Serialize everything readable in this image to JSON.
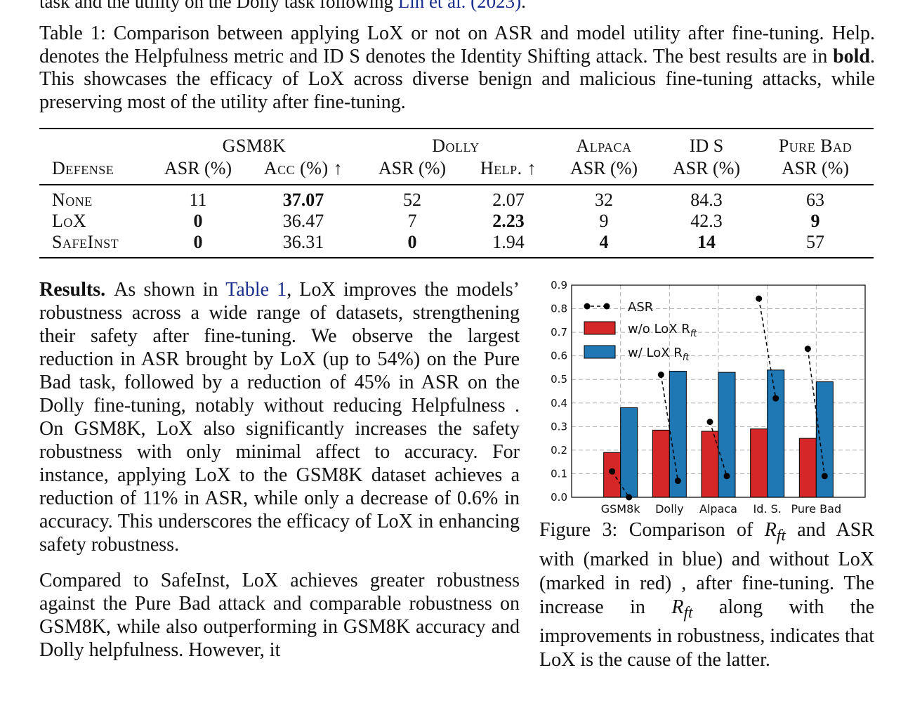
{
  "top_line": {
    "text": "task and the utility on the Dolly task following",
    "cite": "Lin et al. (2023)",
    "tail": "."
  },
  "table_caption": {
    "prefix": "Table 1:",
    "text_1": " Comparison between applying LoX or not on ASR and model utility after fine-tuning. Help. denotes the Helpfulness metric and ID S denotes the Identity Shifting attack. The best results are in ",
    "bold_word": "bold",
    "text_2": ". This showcases the efficacy of LoX across diverse benign and malicious fine-tuning attacks, while preserving most of the utility after fine-tuning."
  },
  "table": {
    "groups": [
      "GSM8K",
      "Dolly",
      "Alpaca",
      "ID S",
      "Pure Bad"
    ],
    "columns": [
      "Defense",
      "ASR (%)",
      "Acc (%) ↑",
      "ASR (%)",
      "Help. ↑",
      "ASR (%)",
      "ASR (%)",
      "ASR (%)"
    ],
    "rows": [
      {
        "name": "None",
        "cells": [
          "11",
          "37.07",
          "52",
          "2.07",
          "32",
          "84.3",
          "63"
        ],
        "bold": [
          false,
          true,
          false,
          false,
          false,
          false,
          false
        ]
      },
      {
        "name": "LoX",
        "cells": [
          "0",
          "36.47",
          "7",
          "2.23",
          "9",
          "42.3",
          "9"
        ],
        "bold": [
          true,
          false,
          false,
          true,
          false,
          false,
          true
        ]
      },
      {
        "name": "SafeInst",
        "cells": [
          "0",
          "36.31",
          "0",
          "1.94",
          "4",
          "14",
          "57"
        ],
        "bold": [
          true,
          false,
          true,
          false,
          true,
          true,
          false
        ]
      }
    ]
  },
  "body": {
    "p1_lead": "Results.",
    "p1_a": "As shown in ",
    "p1_ref": "Table 1",
    "p1_b": ", LoX improves the models’ robustness across a wide range of datasets, strengthening their safety after fine-tuning. We observe the largest reduction in ASR brought by LoX (up to 54%) on the Pure Bad task, followed by a reduction of 45% in ASR on the Dolly fine-tuning, notably without reducing Helpfulness . On GSM8K, LoX also significantly increases the safety robustness with only minimal affect to accuracy. For instance, applying LoX to the GSM8K dataset achieves a reduction of 11% in ASR, while only a decrease of 0.6% in accuracy. This underscores the efficacy of LoX in enhancing safety robustness.",
    "p2": "Compared to SafeInst, LoX achieves greater robustness against the Pure Bad attack and comparable robustness on GSM8K, while also outperforming in GSM8K accuracy and Dolly helpfulness. However, it"
  },
  "figure_caption": {
    "prefix": "Figure 3:",
    "text_1": " Comparison of ",
    "math": "R",
    "math_sub": "ft",
    "text_2": " and ASR with (marked in blue) and without LoX (marked in red) , after fine-tuning. The increase in ",
    "text_3": " along with the improvements in robustness, indicates that LoX is the cause of the latter."
  },
  "chart_data": {
    "type": "bar",
    "categories": [
      "GSM8k",
      "Dolly",
      "Alpaca",
      "Id. S.",
      "Pure Bad"
    ],
    "series": [
      {
        "name": "w/o LoX R_ft",
        "color": "#d62728",
        "values": [
          0.19,
          0.285,
          0.28,
          0.29,
          0.25
        ]
      },
      {
        "name": "w/ LoX R_ft",
        "color": "#1f77b4",
        "values": [
          0.38,
          0.535,
          0.53,
          0.54,
          0.49
        ]
      },
      {
        "name": "ASR",
        "color": "#000000",
        "style": "dashed-line-markers",
        "pairs": [
          [
            0.11,
            0.0
          ],
          [
            0.52,
            0.07
          ],
          [
            0.32,
            0.09
          ],
          [
            0.843,
            0.42
          ],
          [
            0.63,
            0.09
          ]
        ]
      }
    ],
    "ylim": [
      0.0,
      0.9
    ],
    "yticks": [
      "0.0",
      "0.1",
      "0.2",
      "0.3",
      "0.4",
      "0.5",
      "0.6",
      "0.7",
      "0.8",
      "0.9"
    ],
    "legend": [
      "ASR",
      "w/o LoX R",
      "w/ LoX R"
    ],
    "legend_sub": "ft",
    "legend_position": "top-left",
    "grid": true
  }
}
